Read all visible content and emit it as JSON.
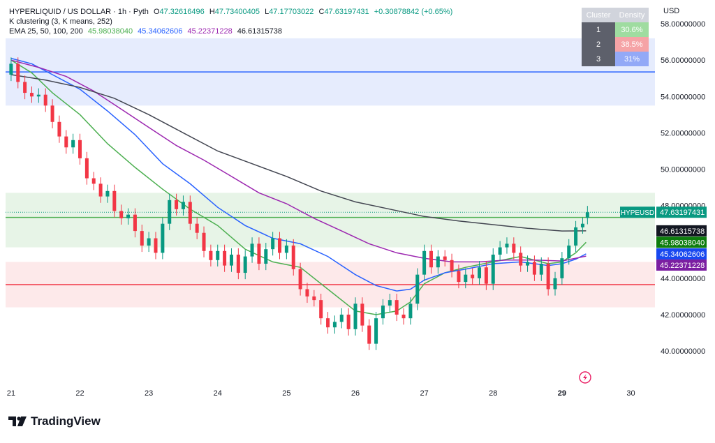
{
  "header": {
    "symbol": "HYPERLIQUID / US DOLLAR · 1h · Pyth",
    "ohlc": [
      {
        "label": "O",
        "value": "47.32616496"
      },
      {
        "label": "H",
        "value": "47.73400405"
      },
      {
        "label": "L",
        "value": "47.17703022"
      },
      {
        "label": "C",
        "value": "47.63197431"
      }
    ],
    "change": "+0.30878842 (+0.65%)",
    "indicator1": "K clustering (3, K means, 252)",
    "ema_label": "EMA 25, 50, 100, 200",
    "ema_values": [
      "45.98038040",
      "45.34062606",
      "45.22371228",
      "46.61315738"
    ]
  },
  "currency": "USD",
  "cluster_table": {
    "headers": [
      "Cluster",
      "Density"
    ],
    "rows": [
      {
        "id": "1",
        "density": "30.6%",
        "color": "#9fdca0"
      },
      {
        "id": "2",
        "density": "38.5%",
        "color": "#f5a3a6"
      },
      {
        "id": "3",
        "density": "31%",
        "color": "#93a9f7"
      }
    ]
  },
  "logo_text": "TradingView",
  "chart_data": {
    "type": "candlestick",
    "title": "HYPERLIQUID / US DOLLAR · 1h · Pyth",
    "ylim": [
      38.2,
      59.0
    ],
    "xlim": [
      20.92,
      30.35
    ],
    "yticks": [
      "58.00000000",
      "56.00000000",
      "54.00000000",
      "52.00000000",
      "50.00000000",
      "48.00000000",
      "46.00000000",
      "44.00000000",
      "42.00000000",
      "40.00000000"
    ],
    "ytick_values": [
      58,
      56,
      54,
      52,
      50,
      48,
      46,
      44,
      42,
      40
    ],
    "xticks": [
      "21",
      "22",
      "23",
      "24",
      "25",
      "26",
      "27",
      "28",
      "29",
      "30"
    ],
    "xtick_values": [
      21,
      22,
      23,
      24,
      25,
      26,
      27,
      28,
      29,
      30
    ],
    "xtick_bold": [
      "29"
    ],
    "zones": [
      {
        "cluster": 3,
        "low": 53.5,
        "high": 57.2,
        "center": 55.35,
        "fill": "#e6ecfd",
        "line": "#2962ff"
      },
      {
        "cluster": 1,
        "low": 45.7,
        "high": 48.7,
        "center": 47.35,
        "fill": "#e7f4e7",
        "line": "#4caf50"
      },
      {
        "cluster": 2,
        "low": 42.4,
        "high": 44.9,
        "center": 43.65,
        "fill": "#fde9ea",
        "line": "#f23645"
      }
    ],
    "price_line": {
      "value": 47.63197431,
      "label": "HYPEUSD",
      "value_label": "47.63197431",
      "color": "#089981"
    },
    "series": [
      {
        "name": "EMA 25",
        "color": "#4caf50",
        "value_label": "45.98038040",
        "x": [
          21.0,
          21.3,
          21.6,
          22.0,
          22.4,
          22.8,
          23.2,
          23.6,
          24.0,
          24.4,
          24.8,
          25.2,
          25.6,
          26.0,
          26.3,
          26.6,
          26.8,
          27.0,
          27.3,
          27.6,
          28.0,
          28.4,
          28.8,
          29.0,
          29.2,
          29.35
        ],
        "y": [
          56.0,
          55.3,
          54.2,
          53.0,
          51.4,
          50.1,
          48.9,
          47.8,
          46.9,
          45.6,
          44.9,
          44.6,
          43.4,
          42.2,
          42.0,
          42.2,
          42.7,
          43.7,
          44.3,
          44.6,
          44.9,
          45.2,
          44.8,
          44.9,
          45.4,
          45.98
        ]
      },
      {
        "name": "EMA 50",
        "color": "#2962ff",
        "value_label": "45.34062606",
        "x": [
          21.0,
          21.3,
          21.6,
          22.0,
          22.4,
          22.8,
          23.2,
          23.6,
          24.0,
          24.4,
          24.8,
          25.2,
          25.6,
          26.0,
          26.3,
          26.6,
          26.8,
          27.0,
          27.3,
          27.6,
          28.0,
          28.4,
          28.8,
          29.0,
          29.2,
          29.35
        ],
        "y": [
          56.1,
          55.8,
          55.2,
          54.4,
          53.2,
          51.9,
          50.3,
          49.2,
          47.9,
          46.9,
          46.2,
          45.9,
          45.2,
          44.2,
          43.6,
          43.3,
          43.4,
          43.9,
          44.3,
          44.5,
          44.8,
          44.9,
          44.7,
          44.8,
          45.05,
          45.34
        ]
      },
      {
        "name": "EMA 100",
        "color": "#9c27b0",
        "value_label": "45.22371228",
        "x": [
          21.0,
          21.4,
          21.8,
          22.2,
          22.6,
          23.0,
          23.4,
          23.8,
          24.2,
          24.6,
          25.0,
          25.4,
          25.8,
          26.2,
          26.6,
          27.0,
          27.4,
          27.8,
          28.2,
          28.6,
          29.0,
          29.35
        ],
        "y": [
          56.0,
          55.6,
          55.1,
          54.3,
          53.3,
          52.3,
          51.3,
          50.5,
          49.6,
          48.7,
          48.1,
          47.3,
          46.6,
          45.9,
          45.4,
          45.1,
          44.9,
          44.9,
          45.0,
          45.0,
          44.95,
          45.22
        ]
      },
      {
        "name": "EMA 200",
        "color": "#434651",
        "value_label": "46.61315738",
        "x": [
          21.0,
          21.5,
          22.0,
          22.5,
          23.0,
          23.5,
          24.0,
          24.5,
          25.0,
          25.5,
          26.0,
          26.5,
          27.0,
          27.5,
          28.0,
          28.5,
          29.0,
          29.35
        ],
        "y": [
          55.2,
          54.9,
          54.5,
          53.9,
          53.0,
          52.0,
          51.0,
          50.3,
          49.6,
          48.8,
          48.2,
          47.8,
          47.4,
          47.15,
          46.95,
          46.75,
          46.6,
          46.61
        ]
      }
    ],
    "candles": {
      "x": [
        21.0,
        21.1,
        21.2,
        21.3,
        21.4,
        21.5,
        21.6,
        21.7,
        21.8,
        21.9,
        22.0,
        22.1,
        22.2,
        22.3,
        22.4,
        22.5,
        22.6,
        22.7,
        22.8,
        22.9,
        23.0,
        23.1,
        23.2,
        23.3,
        23.4,
        23.5,
        23.6,
        23.7,
        23.8,
        23.9,
        24.0,
        24.1,
        24.2,
        24.3,
        24.4,
        24.5,
        24.6,
        24.7,
        24.8,
        24.9,
        25.0,
        25.1,
        25.2,
        25.3,
        25.4,
        25.5,
        25.6,
        25.7,
        25.8,
        25.9,
        26.0,
        26.1,
        26.2,
        26.3,
        26.4,
        26.5,
        26.6,
        26.7,
        26.8,
        26.9,
        27.0,
        27.1,
        27.2,
        27.3,
        27.4,
        27.5,
        27.6,
        27.7,
        27.8,
        27.9,
        28.0,
        28.1,
        28.2,
        28.3,
        28.4,
        28.5,
        28.6,
        28.7,
        28.8,
        28.9,
        29.0,
        29.1,
        29.2,
        29.3,
        29.37
      ],
      "close": [
        55.8,
        54.8,
        54.2,
        54.0,
        54.1,
        53.5,
        52.6,
        51.8,
        51.2,
        51.6,
        50.6,
        49.5,
        49.2,
        48.5,
        48.8,
        47.7,
        47.3,
        47.5,
        46.6,
        45.8,
        46.2,
        45.4,
        47.0,
        48.3,
        47.8,
        48.2,
        47.0,
        46.5,
        45.5,
        45.0,
        45.5,
        44.7,
        45.3,
        44.3,
        45.2,
        45.9,
        44.8,
        45.6,
        46.2,
        45.4,
        45.8,
        44.5,
        43.4,
        43.0,
        42.8,
        41.8,
        41.3,
        41.6,
        42.0,
        41.2,
        42.6,
        41.4,
        40.4,
        41.8,
        42.5,
        42.8,
        42.0,
        41.8,
        42.6,
        44.2,
        45.5,
        44.6,
        45.2,
        45.0,
        44.4,
        43.8,
        44.2,
        44.0,
        44.6,
        43.7,
        45.3,
        45.7,
        45.9,
        45.4,
        44.7,
        44.9,
        44.2,
        44.8,
        43.4,
        44.0,
        45.1,
        45.8,
        46.8,
        47.0,
        47.63
      ],
      "open": [
        55.2,
        55.8,
        54.8,
        54.2,
        54.0,
        54.1,
        53.5,
        52.6,
        51.8,
        51.2,
        51.6,
        50.6,
        49.5,
        49.2,
        48.5,
        48.8,
        47.7,
        47.3,
        47.5,
        46.6,
        45.8,
        46.2,
        45.4,
        47.0,
        48.3,
        47.8,
        48.2,
        47.0,
        46.5,
        45.5,
        45.0,
        45.5,
        44.7,
        45.3,
        44.3,
        45.2,
        45.9,
        44.8,
        45.6,
        46.2,
        45.4,
        45.8,
        44.5,
        43.4,
        43.0,
        42.8,
        41.8,
        41.3,
        41.6,
        42.0,
        41.2,
        42.6,
        41.4,
        40.4,
        41.8,
        42.5,
        42.8,
        42.0,
        41.8,
        42.6,
        44.2,
        45.5,
        44.6,
        45.2,
        45.0,
        44.4,
        43.8,
        44.2,
        44.0,
        44.6,
        43.7,
        45.3,
        45.7,
        45.9,
        45.4,
        44.7,
        44.9,
        44.2,
        44.8,
        43.4,
        44.0,
        45.1,
        45.8,
        46.8,
        47.32
      ]
    }
  }
}
